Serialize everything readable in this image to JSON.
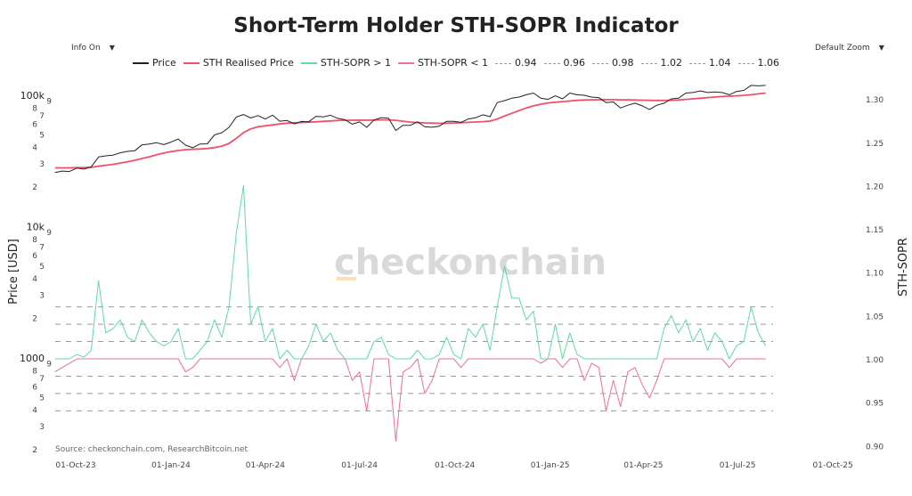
{
  "title": "Short-Term Holder STH-SOPR Indicator",
  "controls": {
    "info_label": "Info On",
    "zoom_label": "Default Zoom",
    "dropdown_icon": "triangle-down"
  },
  "colors": {
    "price": "#222222",
    "realised": "#f0506e",
    "sopr_up": "#5fdca0",
    "sopr_down": "#f07090",
    "dash": "#999999",
    "watermark": "#d9d9d9",
    "watermark_accent": "#fde0b8"
  },
  "watermark": "checkonchain",
  "source": "Source: checkonchain.com, ResearchBitcoin.net",
  "chart_data": {
    "type": "line",
    "title": "Short-Term Holder STH-SOPR Indicator",
    "legend_position": "top",
    "grid": false,
    "legend": [
      {
        "name": "Price",
        "style": "solid",
        "color": "#222222"
      },
      {
        "name": "STH Realised Price",
        "style": "solid",
        "color": "#f0506e"
      },
      {
        "name": "STH-SOPR > 1",
        "style": "solid",
        "color": "#5fdca0"
      },
      {
        "name": "STH-SOPR < 1",
        "style": "solid",
        "color": "#f07090"
      },
      {
        "name": "0.94",
        "style": "dash",
        "color": "#999999"
      },
      {
        "name": "0.96",
        "style": "dash",
        "color": "#999999"
      },
      {
        "name": "0.98",
        "style": "dash",
        "color": "#999999"
      },
      {
        "name": "1.02",
        "style": "dash",
        "color": "#999999"
      },
      {
        "name": "1.04",
        "style": "dash",
        "color": "#999999"
      },
      {
        "name": "1.06",
        "style": "dash",
        "color": "#999999"
      }
    ],
    "x_axis": {
      "type": "date",
      "range": [
        "2023-09-10",
        "2025-10-20"
      ],
      "ticks": [
        "01-Oct-23",
        "01-Jan-24",
        "01-Apr-24",
        "01-Jul-24",
        "01-Oct-24",
        "01-Jan-25",
        "01-Apr-25",
        "01-Jul-25",
        "01-Oct-25"
      ],
      "tick_dates": [
        "2023-10-01",
        "2024-01-01",
        "2024-04-01",
        "2024-07-01",
        "2024-10-01",
        "2025-01-01",
        "2025-04-01",
        "2025-07-01",
        "2025-10-01"
      ]
    },
    "y_left": {
      "label": "Price [USD]",
      "scale": "log",
      "range": [
        1.9,
        120000
      ],
      "major_ticks": [
        {
          "value": 100000,
          "label": "100k"
        },
        {
          "value": 10000,
          "label": "10k"
        },
        {
          "value": 1000,
          "label": "1000"
        }
      ],
      "minor_ticks": [
        {
          "value": 90000,
          "label": "9"
        },
        {
          "value": 80000,
          "label": "8"
        },
        {
          "value": 70000,
          "label": "7"
        },
        {
          "value": 60000,
          "label": "6"
        },
        {
          "value": 50000,
          "label": "5"
        },
        {
          "value": 40000,
          "label": "4"
        },
        {
          "value": 30000,
          "label": "3"
        },
        {
          "value": 20000,
          "label": "2"
        },
        {
          "value": 9000,
          "label": "9"
        },
        {
          "value": 8000,
          "label": "8"
        },
        {
          "value": 7000,
          "label": "7"
        },
        {
          "value": 6000,
          "label": "6"
        },
        {
          "value": 5000,
          "label": "5"
        },
        {
          "value": 4000,
          "label": "4"
        },
        {
          "value": 3000,
          "label": "3"
        },
        {
          "value": 2000,
          "label": "2"
        },
        {
          "value": 900,
          "label": "9"
        },
        {
          "value": 800,
          "label": "8"
        },
        {
          "value": 700,
          "label": "7"
        },
        {
          "value": 600,
          "label": "6"
        },
        {
          "value": 500,
          "label": "5"
        },
        {
          "value": 400,
          "label": "4"
        },
        {
          "value": 300,
          "label": "3"
        },
        {
          "value": 200,
          "label": "2"
        }
      ]
    },
    "y_right": {
      "label": "STH-SOPR",
      "scale": "linear",
      "range": [
        0.885,
        1.31
      ],
      "ticks": [
        "0.90",
        "0.95",
        "1.00",
        "1.05",
        "1.10",
        "1.15",
        "1.20",
        "1.25",
        "1.30"
      ]
    },
    "reference_lines": [
      0.94,
      0.96,
      0.98,
      1.0,
      1.02,
      1.04,
      1.06
    ],
    "dates": [
      "2023-09-11",
      "2023-09-18",
      "2023-09-25",
      "2023-10-02",
      "2023-10-09",
      "2023-10-16",
      "2023-10-23",
      "2023-10-30",
      "2023-11-06",
      "2023-11-13",
      "2023-11-20",
      "2023-11-27",
      "2023-12-04",
      "2023-12-11",
      "2023-12-18",
      "2023-12-25",
      "2024-01-01",
      "2024-01-08",
      "2024-01-15",
      "2024-01-22",
      "2024-01-29",
      "2024-02-05",
      "2024-02-12",
      "2024-02-19",
      "2024-02-26",
      "2024-03-04",
      "2024-03-11",
      "2024-03-18",
      "2024-03-25",
      "2024-04-01",
      "2024-04-08",
      "2024-04-15",
      "2024-04-22",
      "2024-04-29",
      "2024-05-06",
      "2024-05-13",
      "2024-05-20",
      "2024-05-27",
      "2024-06-03",
      "2024-06-10",
      "2024-06-17",
      "2024-06-24",
      "2024-07-01",
      "2024-07-08",
      "2024-07-15",
      "2024-07-22",
      "2024-07-29",
      "2024-08-05",
      "2024-08-12",
      "2024-08-19",
      "2024-08-26",
      "2024-09-02",
      "2024-09-09",
      "2024-09-16",
      "2024-09-23",
      "2024-09-30",
      "2024-10-07",
      "2024-10-14",
      "2024-10-21",
      "2024-10-28",
      "2024-11-04",
      "2024-11-11",
      "2024-11-18",
      "2024-11-25",
      "2024-12-02",
      "2024-12-09",
      "2024-12-16",
      "2024-12-23",
      "2024-12-30",
      "2025-01-06",
      "2025-01-13",
      "2025-01-20",
      "2025-01-27",
      "2025-02-03",
      "2025-02-10",
      "2025-02-17",
      "2025-02-24",
      "2025-03-03",
      "2025-03-10",
      "2025-03-17",
      "2025-03-24",
      "2025-03-31",
      "2025-04-07",
      "2025-04-14",
      "2025-04-21",
      "2025-04-28",
      "2025-05-05",
      "2025-05-12",
      "2025-05-19",
      "2025-05-26",
      "2025-06-02",
      "2025-06-09",
      "2025-06-16",
      "2025-06-23",
      "2025-06-30",
      "2025-07-07",
      "2025-07-14",
      "2025-07-21",
      "2025-07-28"
    ],
    "series": [
      {
        "name": "Price",
        "axis": "left",
        "values": [
          25800,
          26500,
          26300,
          27900,
          27400,
          28500,
          33900,
          34600,
          35000,
          36500,
          37400,
          37800,
          41900,
          42500,
          43600,
          42100,
          44000,
          46500,
          41700,
          39900,
          42600,
          42700,
          49900,
          51800,
          57000,
          68300,
          71400,
          67200,
          70000,
          65900,
          70600,
          63500,
          64300,
          60600,
          63200,
          62900,
          69200,
          68400,
          70500,
          66700,
          65200,
          60300,
          62700,
          57000,
          64800,
          67600,
          66800,
          54000,
          59100,
          59000,
          62800,
          57500,
          57100,
          58200,
          63300,
          63300,
          62200,
          66000,
          67400,
          71000,
          68700,
          88000,
          91000,
          95000,
          97000,
          101000,
          104000,
          95000,
          93000,
          99000,
          94000,
          104000,
          101000,
          100000,
          97000,
          96000,
          88000,
          89000,
          80000,
          84000,
          87000,
          83000,
          78000,
          84000,
          87000,
          94000,
          95000,
          104000,
          105000,
          108000,
          105000,
          106000,
          105000,
          101000,
          107000,
          109000,
          119000,
          118000,
          119000
        ]
      },
      {
        "name": "STH Realised Price",
        "axis": "left",
        "values": [
          28000,
          28000,
          28000,
          28100,
          28200,
          28300,
          28800,
          29300,
          29800,
          30500,
          31200,
          32000,
          33000,
          34000,
          35200,
          36300,
          37200,
          38000,
          38500,
          38800,
          39000,
          39300,
          40000,
          41000,
          43000,
          47000,
          52000,
          55500,
          57500,
          58500,
          59500,
          60500,
          61300,
          61800,
          62000,
          62400,
          62800,
          63300,
          63800,
          64300,
          64500,
          64600,
          64700,
          64600,
          64800,
          65000,
          65000,
          64500,
          63500,
          62500,
          62000,
          61600,
          61400,
          61200,
          61300,
          61500,
          61800,
          62200,
          62600,
          63000,
          63600,
          66000,
          69500,
          73000,
          76500,
          80000,
          83000,
          85500,
          87500,
          88500,
          89500,
          90500,
          91500,
          92000,
          92300,
          92500,
          92600,
          92600,
          92400,
          92200,
          92000,
          91800,
          91500,
          91300,
          91300,
          91600,
          92000,
          93000,
          94000,
          95000,
          96000,
          97000,
          97800,
          98500,
          99000,
          99800,
          101000,
          102500,
          104000
        ]
      },
      {
        "name": "STH-SOPR",
        "axis": "right",
        "values": [
          0.985,
          0.99,
          0.995,
          1.005,
          1.002,
          1.01,
          1.09,
          1.03,
          1.035,
          1.045,
          1.025,
          1.02,
          1.045,
          1.03,
          1.02,
          1.015,
          1.02,
          1.035,
          0.985,
          0.99,
          1.01,
          1.02,
          1.045,
          1.025,
          1.06,
          1.145,
          1.2,
          1.04,
          1.06,
          1.02,
          1.035,
          0.99,
          1.01,
          0.975,
          1.0,
          1.015,
          1.04,
          1.02,
          1.03,
          1.01,
          1.0,
          0.975,
          0.985,
          0.94,
          1.02,
          1.025,
          1.005,
          0.905,
          0.985,
          0.99,
          1.01,
          0.96,
          0.975,
          1.005,
          1.025,
          1.005,
          0.99,
          1.035,
          1.025,
          1.04,
          1.01,
          1.06,
          1.107,
          1.07,
          1.07,
          1.045,
          1.055,
          0.995,
          1.0,
          1.04,
          0.99,
          1.03,
          1.005,
          0.975,
          0.995,
          0.99,
          0.94,
          0.975,
          0.945,
          0.985,
          0.99,
          0.97,
          0.955,
          0.975,
          1.035,
          1.05,
          1.03,
          1.045,
          1.02,
          1.035,
          1.01,
          1.03,
          1.02,
          0.99,
          1.015,
          1.02,
          1.06,
          1.03,
          1.015
        ]
      }
    ]
  }
}
